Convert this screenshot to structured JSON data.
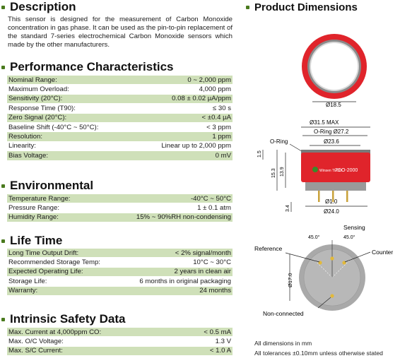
{
  "description": {
    "title": "Description",
    "text": "This sensor is designed for the measurement of Carbon Monoxide concentration in gas phase. It can be used as the pin-to-pin replacement of the standard 7-series electrochemical Carbon Monoxide sensors which made by the other manufacturers."
  },
  "performance": {
    "title": "Performance Characteristics",
    "rows": [
      {
        "label": "Nominal Range:",
        "value": "0 ~ 2,000 ppm"
      },
      {
        "label": "Maximum Overload:",
        "value": "4,000 ppm"
      },
      {
        "label": "Sensitivity (20°C):",
        "value": "0.08 ± 0.02 µA/ppm"
      },
      {
        "label": "Response Time (T90):",
        "value": "≤ 30 s"
      },
      {
        "label": "Zero Signal (20°C):",
        "value": "< ±0.4 µA"
      },
      {
        "label": "Baseline Shift (-40°C ~ 50°C):",
        "value": "< 3 ppm"
      },
      {
        "label": "Resolution:",
        "value": "1 ppm"
      },
      {
        "label": "Linearity:",
        "value": "Linear up to 2,000 ppm"
      },
      {
        "label": "Bias Voltage:",
        "value": "0 mV"
      }
    ]
  },
  "environmental": {
    "title": "Environmental",
    "rows": [
      {
        "label": "Temperature Range:",
        "value": "-40°C ~ 50°C"
      },
      {
        "label": "Pressure Range:",
        "value": "1 ± 0.1 atm"
      },
      {
        "label": "Humidity Range:",
        "value": "15% ~ 90%RH non-condensing"
      }
    ]
  },
  "lifetime": {
    "title": "Life Time",
    "rows": [
      {
        "label": "Long Time Output Drift:",
        "value": "< 2% signal/month"
      },
      {
        "label": "Recommended Storage Temp:",
        "value": "10°C ~ 30°C"
      },
      {
        "label": "Expected Operating Life:",
        "value": "2 years in clean air"
      },
      {
        "label": "Storage Life:",
        "value": "6 months in original packaging"
      },
      {
        "label": "Warranty:",
        "value": "24 months"
      }
    ]
  },
  "safety": {
    "title": "Intrinsic Safety Data",
    "rows": [
      {
        "label": "Max. Current at 4,000ppm CO:",
        "value": "< 0.5 mA"
      },
      {
        "label": "Max. O/C Voltage:",
        "value": "1.3 V"
      },
      {
        "label": "Max. S/C Current:",
        "value": "< 1.0 A"
      }
    ]
  },
  "dimensions": {
    "title": "Product Dimensions",
    "top_dia": "Ø18.5",
    "max_dia": "Ø31.5 MAX",
    "oring_label": "O-Ring",
    "oring_dia_label": "O-Ring Ø27.2",
    "inner_dia": "Ø23.6",
    "h1": "1.5",
    "h2": "15.3",
    "h3": "13.9",
    "brand": "Winsen TECH",
    "model": "7CO-2000",
    "pin_dia": "Ø1.0",
    "pin_len": "3.4",
    "base_dia": "Ø24.0",
    "sensing": "Sensing",
    "angle1": "45.0°",
    "angle2": "45.0°",
    "reference": "Reference",
    "counter": "Counter",
    "bottom_dia": "Ø17.0",
    "nonconnected": "Non-connected"
  },
  "notes": {
    "line1": "All dimensions in mm",
    "line2": "All tolerances ±0.10mm unless otherwise stated"
  },
  "colors": {
    "accent": "#4a7a1e",
    "row_fill": "#cfe0b9",
    "ring_red": "#e0242b"
  }
}
